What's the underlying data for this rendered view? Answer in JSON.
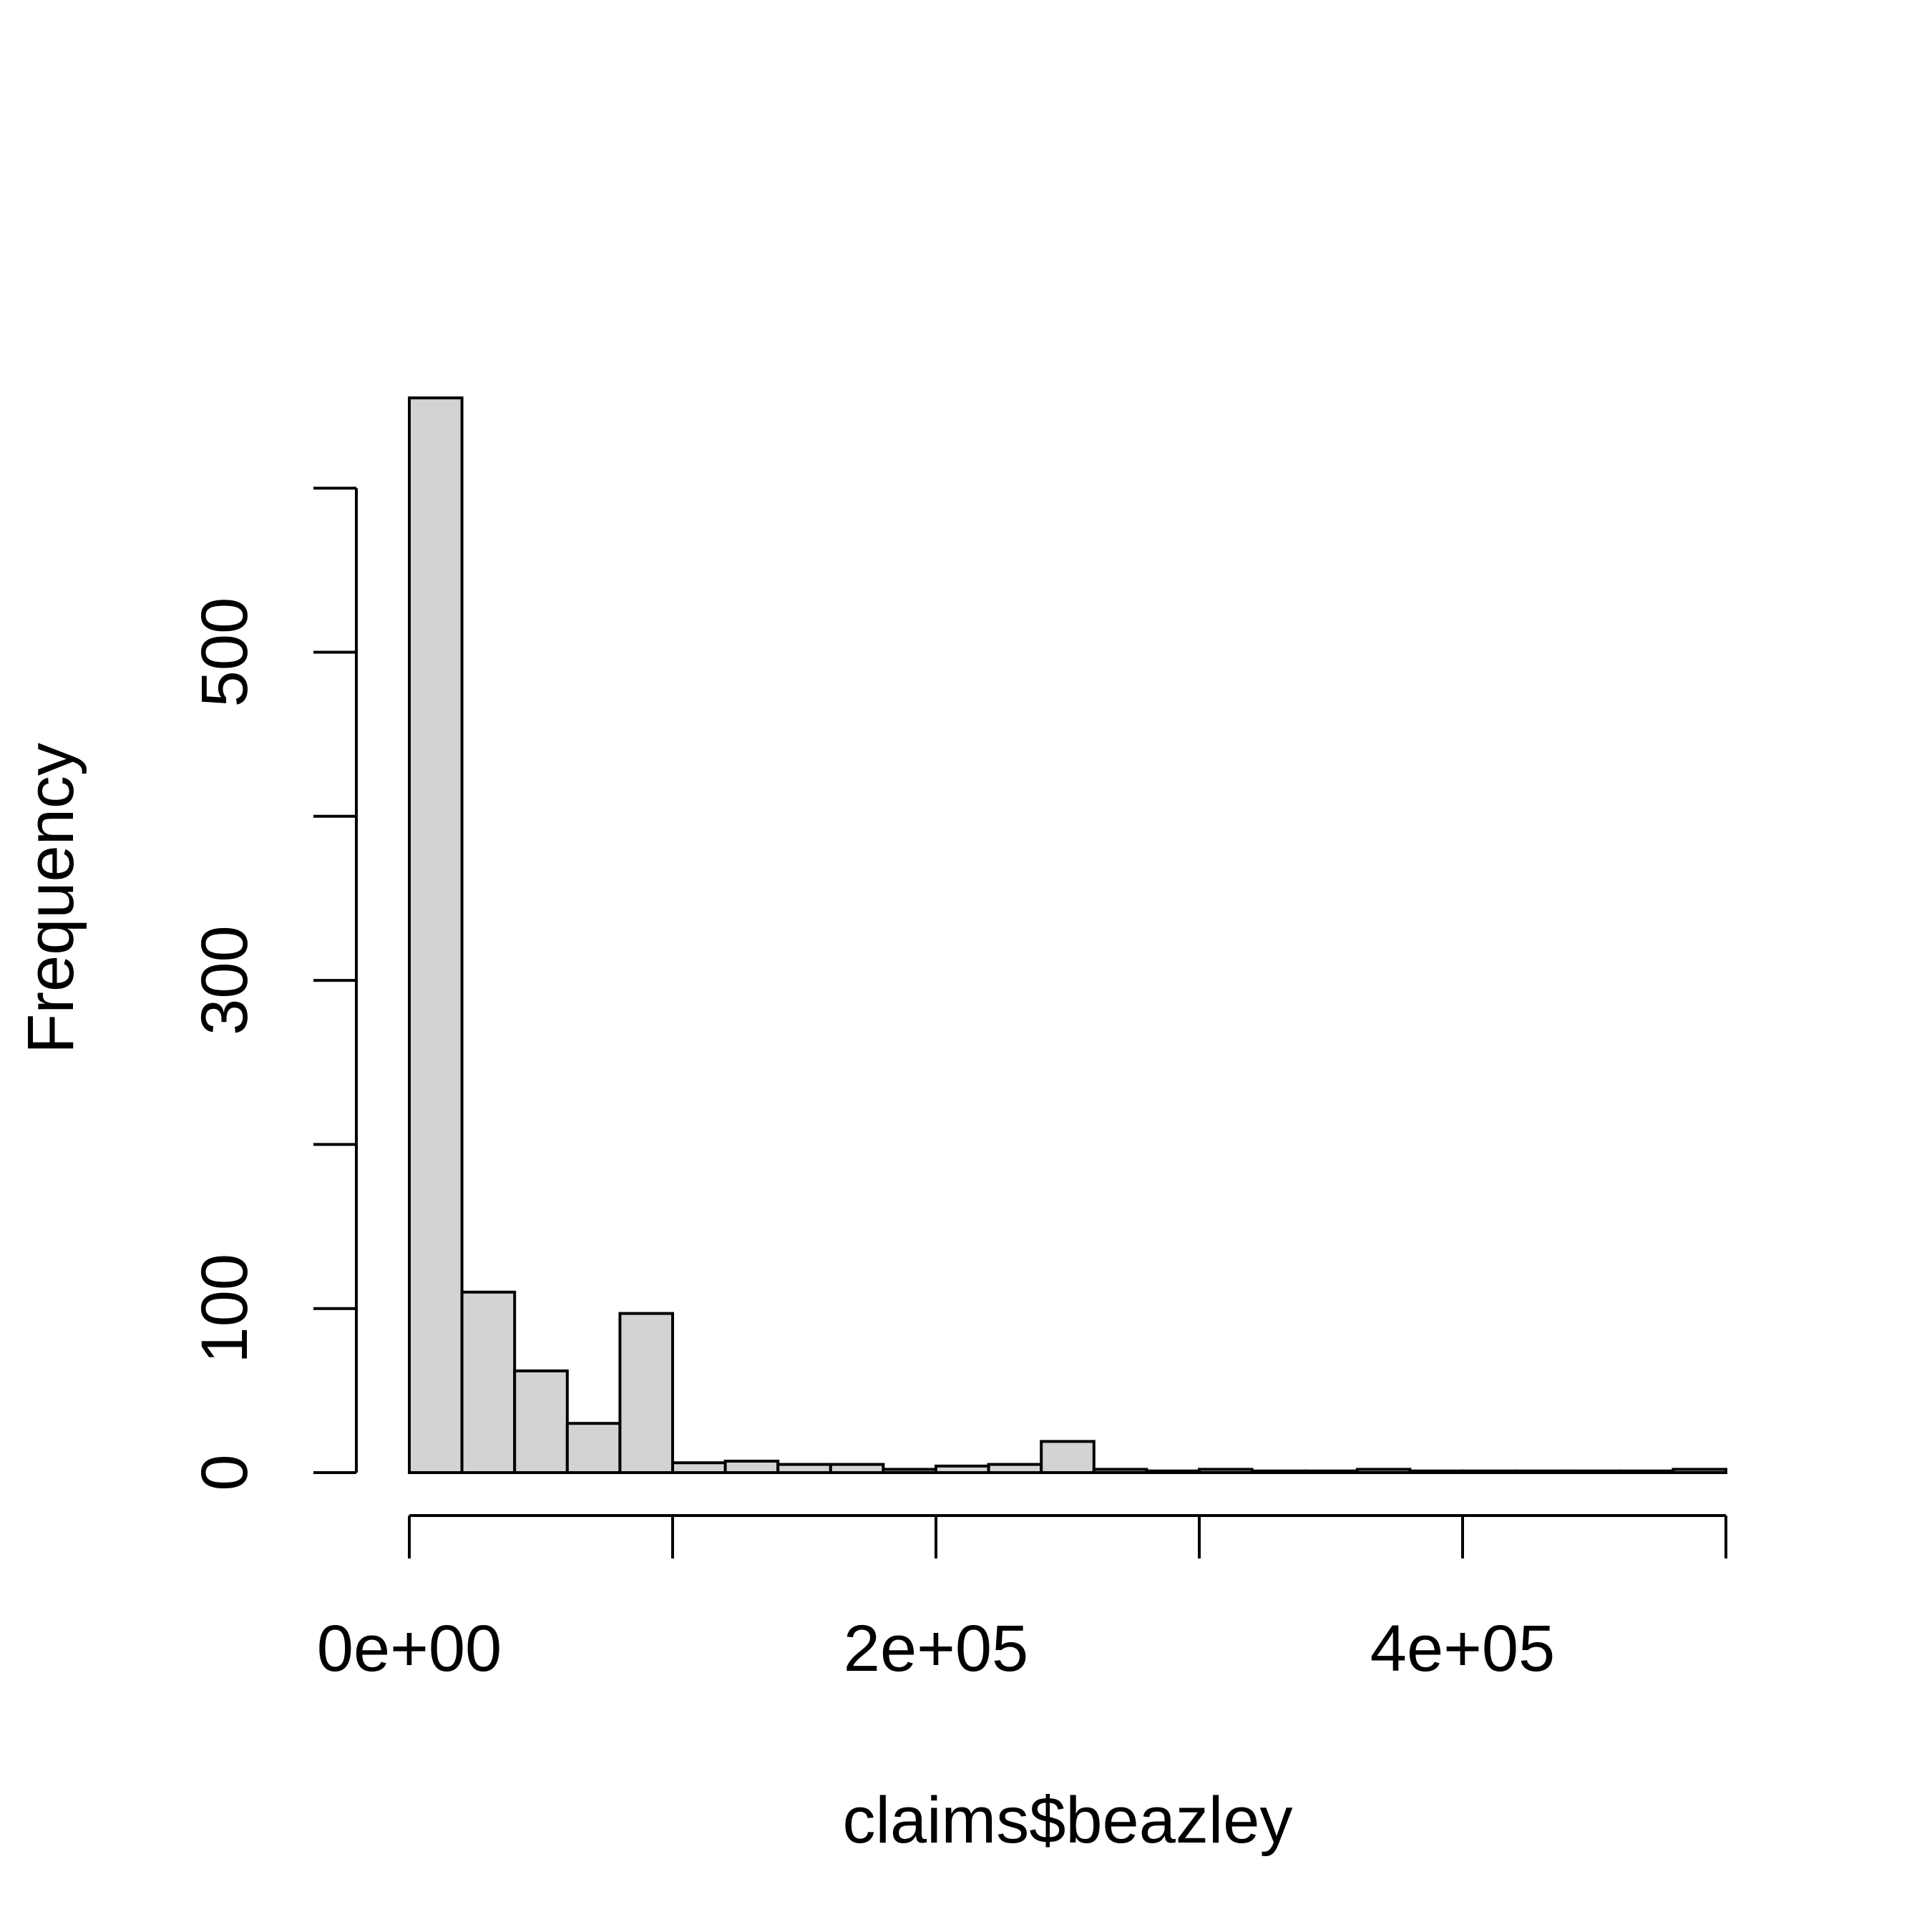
{
  "chart_data": {
    "type": "bar",
    "title": "",
    "xlabel": "claims$beazley",
    "ylabel": "Frequency",
    "bin_width": 20000,
    "xlim": [
      0,
      500000
    ],
    "ylim": [
      0,
      700
    ],
    "x_bins": [
      [
        0,
        20000
      ],
      [
        20000,
        40000
      ],
      [
        40000,
        60000
      ],
      [
        60000,
        80000
      ],
      [
        80000,
        100000
      ],
      [
        100000,
        120000
      ],
      [
        120000,
        140000
      ],
      [
        140000,
        160000
      ],
      [
        160000,
        180000
      ],
      [
        180000,
        200000
      ],
      [
        200000,
        220000
      ],
      [
        220000,
        240000
      ],
      [
        240000,
        260000
      ],
      [
        260000,
        280000
      ],
      [
        280000,
        300000
      ],
      [
        300000,
        320000
      ],
      [
        320000,
        340000
      ],
      [
        340000,
        360000
      ],
      [
        360000,
        380000
      ],
      [
        380000,
        400000
      ],
      [
        400000,
        420000
      ],
      [
        420000,
        440000
      ],
      [
        440000,
        460000
      ],
      [
        460000,
        480000
      ],
      [
        480000,
        500000
      ]
    ],
    "values": [
      655,
      110,
      62,
      30,
      97,
      6,
      7,
      5,
      5,
      2,
      4,
      5,
      19,
      2,
      1,
      2,
      1,
      1,
      2,
      1,
      1,
      1,
      1,
      1,
      2
    ],
    "x_ticks": [
      0,
      100000,
      200000,
      300000,
      400000,
      500000
    ],
    "x_tick_labels": [
      {
        "value": 0,
        "label": "0e+00"
      },
      {
        "value": 200000,
        "label": "2e+05"
      },
      {
        "value": 400000,
        "label": "4e+05"
      }
    ],
    "y_ticks": [
      0,
      100,
      200,
      300,
      400,
      500,
      600
    ],
    "y_tick_labels": [
      {
        "value": 0,
        "label": "0"
      },
      {
        "value": 100,
        "label": "100"
      },
      {
        "value": 300,
        "label": "300"
      },
      {
        "value": 500,
        "label": "500"
      }
    ],
    "bar_color": "#d3d3d3",
    "grid": false,
    "legend": "none"
  }
}
